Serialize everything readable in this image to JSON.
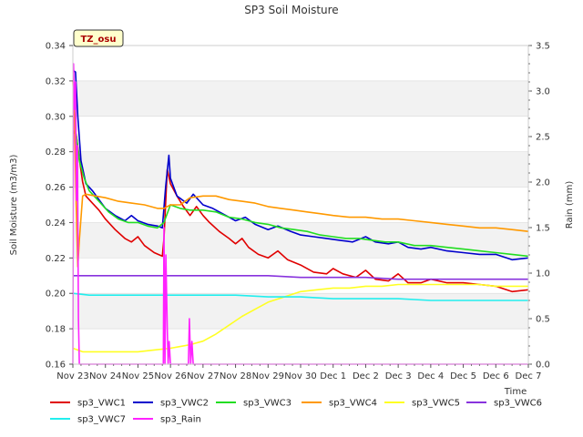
{
  "chart_data": {
    "type": "line",
    "title": "SP3 Soil Moisture",
    "badge": "TZ_osu",
    "xlabel": "Time",
    "ylabel": "Soil Moisture (m3/m3)",
    "y2label": "Rain (mm)",
    "ylim": [
      0.16,
      0.34
    ],
    "y2lim": [
      0.0,
      3.5
    ],
    "xlim": [
      0,
      14
    ],
    "x_ticks": [
      "Nov 23",
      "Nov 24",
      "Nov 25",
      "Nov 26",
      "Nov 27",
      "Nov 28",
      "Nov 29",
      "Nov 30",
      "Dec 1",
      "Dec 2",
      "Dec 3",
      "Dec 4",
      "Dec 5",
      "Dec 6",
      "Dec 7"
    ],
    "y_ticks": [
      "0.16",
      "0.18",
      "0.20",
      "0.22",
      "0.24",
      "0.26",
      "0.28",
      "0.30",
      "0.32",
      "0.34"
    ],
    "y2_ticks": [
      "0.0",
      "0.5",
      "1.0",
      "1.5",
      "2.0",
      "2.5",
      "3.0",
      "3.5"
    ],
    "grid": "horizontal bands",
    "legend_position": "bottom",
    "series": [
      {
        "name": "sp3_VWC1",
        "color": "#e00000",
        "axis": "left",
        "points": [
          [
            0.0,
            0.291
          ],
          [
            0.1,
            0.29
          ],
          [
            0.2,
            0.276
          ],
          [
            0.3,
            0.263
          ],
          [
            0.4,
            0.255
          ],
          [
            0.6,
            0.251
          ],
          [
            0.8,
            0.247
          ],
          [
            1.0,
            0.242
          ],
          [
            1.3,
            0.236
          ],
          [
            1.6,
            0.231
          ],
          [
            1.8,
            0.229
          ],
          [
            2.0,
            0.232
          ],
          [
            2.2,
            0.227
          ],
          [
            2.5,
            0.223
          ],
          [
            2.75,
            0.221
          ],
          [
            2.8,
            0.231
          ],
          [
            2.9,
            0.27
          ],
          [
            3.0,
            0.262
          ],
          [
            3.2,
            0.255
          ],
          [
            3.4,
            0.249
          ],
          [
            3.6,
            0.244
          ],
          [
            3.8,
            0.249
          ],
          [
            4.0,
            0.244
          ],
          [
            4.2,
            0.24
          ],
          [
            4.5,
            0.235
          ],
          [
            4.8,
            0.231
          ],
          [
            5.0,
            0.228
          ],
          [
            5.2,
            0.231
          ],
          [
            5.4,
            0.226
          ],
          [
            5.7,
            0.222
          ],
          [
            6.0,
            0.22
          ],
          [
            6.3,
            0.224
          ],
          [
            6.6,
            0.219
          ],
          [
            7.0,
            0.216
          ],
          [
            7.4,
            0.212
          ],
          [
            7.8,
            0.211
          ],
          [
            8.0,
            0.214
          ],
          [
            8.3,
            0.211
          ],
          [
            8.7,
            0.209
          ],
          [
            9.0,
            0.213
          ],
          [
            9.3,
            0.208
          ],
          [
            9.7,
            0.207
          ],
          [
            10.0,
            0.211
          ],
          [
            10.3,
            0.206
          ],
          [
            10.7,
            0.206
          ],
          [
            11.0,
            0.208
          ],
          [
            11.5,
            0.206
          ],
          [
            12.0,
            0.206
          ],
          [
            12.5,
            0.205
          ],
          [
            13.0,
            0.204
          ],
          [
            13.5,
            0.201
          ],
          [
            14.0,
            0.202
          ]
        ]
      },
      {
        "name": "sp3_VWC2",
        "color": "#0000cc",
        "axis": "left",
        "points": [
          [
            0.0,
            0.326
          ],
          [
            0.08,
            0.325
          ],
          [
            0.15,
            0.3
          ],
          [
            0.25,
            0.275
          ],
          [
            0.4,
            0.262
          ],
          [
            0.6,
            0.258
          ],
          [
            0.8,
            0.253
          ],
          [
            1.0,
            0.248
          ],
          [
            1.3,
            0.244
          ],
          [
            1.6,
            0.241
          ],
          [
            1.8,
            0.244
          ],
          [
            2.0,
            0.241
          ],
          [
            2.3,
            0.239
          ],
          [
            2.6,
            0.238
          ],
          [
            2.75,
            0.237
          ],
          [
            2.85,
            0.26
          ],
          [
            2.95,
            0.278
          ],
          [
            3.0,
            0.265
          ],
          [
            3.2,
            0.255
          ],
          [
            3.5,
            0.251
          ],
          [
            3.7,
            0.256
          ],
          [
            4.0,
            0.25
          ],
          [
            4.3,
            0.248
          ],
          [
            4.6,
            0.245
          ],
          [
            5.0,
            0.241
          ],
          [
            5.3,
            0.243
          ],
          [
            5.6,
            0.239
          ],
          [
            6.0,
            0.236
          ],
          [
            6.3,
            0.238
          ],
          [
            6.7,
            0.235
          ],
          [
            7.0,
            0.233
          ],
          [
            7.4,
            0.232
          ],
          [
            7.8,
            0.231
          ],
          [
            8.2,
            0.23
          ],
          [
            8.6,
            0.229
          ],
          [
            9.0,
            0.232
          ],
          [
            9.3,
            0.229
          ],
          [
            9.7,
            0.228
          ],
          [
            10.0,
            0.229
          ],
          [
            10.3,
            0.226
          ],
          [
            10.7,
            0.225
          ],
          [
            11.0,
            0.226
          ],
          [
            11.5,
            0.224
          ],
          [
            12.0,
            0.223
          ],
          [
            12.5,
            0.222
          ],
          [
            13.0,
            0.222
          ],
          [
            13.5,
            0.219
          ],
          [
            14.0,
            0.22
          ]
        ]
      },
      {
        "name": "sp3_VWC3",
        "color": "#22dd22",
        "axis": "left",
        "points": [
          [
            0.0,
            0.292
          ],
          [
            0.1,
            0.29
          ],
          [
            0.2,
            0.275
          ],
          [
            0.35,
            0.265
          ],
          [
            0.5,
            0.258
          ],
          [
            0.8,
            0.252
          ],
          [
            1.1,
            0.246
          ],
          [
            1.4,
            0.242
          ],
          [
            1.7,
            0.24
          ],
          [
            2.0,
            0.24
          ],
          [
            2.3,
            0.238
          ],
          [
            2.6,
            0.237
          ],
          [
            2.8,
            0.24
          ],
          [
            3.0,
            0.25
          ],
          [
            3.3,
            0.248
          ],
          [
            3.6,
            0.247
          ],
          [
            4.0,
            0.247
          ],
          [
            4.4,
            0.246
          ],
          [
            4.8,
            0.243
          ],
          [
            5.2,
            0.242
          ],
          [
            5.6,
            0.24
          ],
          [
            6.0,
            0.239
          ],
          [
            6.4,
            0.237
          ],
          [
            6.8,
            0.236
          ],
          [
            7.2,
            0.235
          ],
          [
            7.6,
            0.233
          ],
          [
            8.0,
            0.232
          ],
          [
            8.4,
            0.231
          ],
          [
            8.8,
            0.231
          ],
          [
            9.2,
            0.23
          ],
          [
            9.6,
            0.229
          ],
          [
            10.0,
            0.229
          ],
          [
            10.5,
            0.227
          ],
          [
            11.0,
            0.227
          ],
          [
            11.5,
            0.226
          ],
          [
            12.0,
            0.225
          ],
          [
            12.5,
            0.224
          ],
          [
            13.0,
            0.223
          ],
          [
            13.5,
            0.222
          ],
          [
            14.0,
            0.221
          ]
        ]
      },
      {
        "name": "sp3_VWC4",
        "color": "#ff9900",
        "axis": "left",
        "points": [
          [
            0.0,
            0.32
          ],
          [
            0.05,
            0.3
          ],
          [
            0.1,
            0.25
          ],
          [
            0.15,
            0.215
          ],
          [
            0.2,
            0.23
          ],
          [
            0.3,
            0.255
          ],
          [
            0.4,
            0.256
          ],
          [
            0.7,
            0.255
          ],
          [
            1.0,
            0.254
          ],
          [
            1.4,
            0.252
          ],
          [
            1.8,
            0.251
          ],
          [
            2.2,
            0.25
          ],
          [
            2.6,
            0.248
          ],
          [
            2.8,
            0.248
          ],
          [
            3.0,
            0.25
          ],
          [
            3.3,
            0.25
          ],
          [
            3.6,
            0.254
          ],
          [
            4.0,
            0.255
          ],
          [
            4.4,
            0.255
          ],
          [
            4.8,
            0.253
          ],
          [
            5.2,
            0.252
          ],
          [
            5.6,
            0.251
          ],
          [
            6.0,
            0.249
          ],
          [
            6.4,
            0.248
          ],
          [
            6.8,
            0.247
          ],
          [
            7.2,
            0.246
          ],
          [
            7.6,
            0.245
          ],
          [
            8.0,
            0.244
          ],
          [
            8.5,
            0.243
          ],
          [
            9.0,
            0.243
          ],
          [
            9.5,
            0.242
          ],
          [
            10.0,
            0.242
          ],
          [
            10.5,
            0.241
          ],
          [
            11.0,
            0.24
          ],
          [
            11.5,
            0.239
          ],
          [
            12.0,
            0.238
          ],
          [
            12.5,
            0.237
          ],
          [
            13.0,
            0.237
          ],
          [
            13.5,
            0.236
          ],
          [
            14.0,
            0.235
          ]
        ]
      },
      {
        "name": "sp3_VWC5",
        "color": "#ffff22",
        "axis": "left",
        "points": [
          [
            0.0,
            0.169
          ],
          [
            0.3,
            0.167
          ],
          [
            0.6,
            0.167
          ],
          [
            1.0,
            0.167
          ],
          [
            1.5,
            0.167
          ],
          [
            2.0,
            0.167
          ],
          [
            2.5,
            0.168
          ],
          [
            3.0,
            0.169
          ],
          [
            3.3,
            0.17
          ],
          [
            3.6,
            0.171
          ],
          [
            4.0,
            0.173
          ],
          [
            4.4,
            0.177
          ],
          [
            4.8,
            0.182
          ],
          [
            5.2,
            0.187
          ],
          [
            5.6,
            0.191
          ],
          [
            6.0,
            0.195
          ],
          [
            6.5,
            0.198
          ],
          [
            7.0,
            0.201
          ],
          [
            7.5,
            0.202
          ],
          [
            8.0,
            0.203
          ],
          [
            8.5,
            0.203
          ],
          [
            9.0,
            0.204
          ],
          [
            9.5,
            0.204
          ],
          [
            10.0,
            0.205
          ],
          [
            10.5,
            0.205
          ],
          [
            11.0,
            0.205
          ],
          [
            11.5,
            0.205
          ],
          [
            12.0,
            0.205
          ],
          [
            12.5,
            0.205
          ],
          [
            13.0,
            0.204
          ],
          [
            13.5,
            0.204
          ],
          [
            14.0,
            0.204
          ]
        ]
      },
      {
        "name": "sp3_VWC6",
        "color": "#8833dd",
        "axis": "left",
        "points": [
          [
            0.0,
            0.21
          ],
          [
            0.5,
            0.21
          ],
          [
            1.0,
            0.21
          ],
          [
            2.0,
            0.21
          ],
          [
            3.0,
            0.21
          ],
          [
            4.0,
            0.21
          ],
          [
            5.0,
            0.21
          ],
          [
            6.0,
            0.21
          ],
          [
            7.0,
            0.209
          ],
          [
            8.0,
            0.209
          ],
          [
            9.0,
            0.209
          ],
          [
            10.0,
            0.208
          ],
          [
            11.0,
            0.208
          ],
          [
            12.0,
            0.208
          ],
          [
            13.0,
            0.208
          ],
          [
            14.0,
            0.208
          ]
        ]
      },
      {
        "name": "sp3_VWC7",
        "color": "#22eeee",
        "axis": "left",
        "points": [
          [
            0.0,
            0.2
          ],
          [
            0.5,
            0.199
          ],
          [
            1.0,
            0.199
          ],
          [
            2.0,
            0.199
          ],
          [
            3.0,
            0.199
          ],
          [
            4.0,
            0.199
          ],
          [
            5.0,
            0.199
          ],
          [
            6.0,
            0.198
          ],
          [
            7.0,
            0.198
          ],
          [
            8.0,
            0.197
          ],
          [
            9.0,
            0.197
          ],
          [
            10.0,
            0.197
          ],
          [
            11.0,
            0.196
          ],
          [
            12.0,
            0.196
          ],
          [
            13.0,
            0.196
          ],
          [
            14.0,
            0.196
          ]
        ]
      },
      {
        "name": "sp3_Rain",
        "color": "#ff22ff",
        "axis": "right",
        "points": [
          [
            0.0,
            0.0
          ],
          [
            0.02,
            3.3
          ],
          [
            0.05,
            2.8
          ],
          [
            0.08,
            3.1
          ],
          [
            0.11,
            1.8
          ],
          [
            0.14,
            2.4
          ],
          [
            0.17,
            0.5
          ],
          [
            0.2,
            0.0
          ],
          [
            2.5,
            0.0
          ],
          [
            2.78,
            0.0
          ],
          [
            2.8,
            1.5
          ],
          [
            2.83,
            0.0
          ],
          [
            2.86,
            1.2
          ],
          [
            2.9,
            0.4
          ],
          [
            2.93,
            0.0
          ],
          [
            2.96,
            0.25
          ],
          [
            3.0,
            0.0
          ],
          [
            3.55,
            0.0
          ],
          [
            3.58,
            0.5
          ],
          [
            3.62,
            0.0
          ],
          [
            3.66,
            0.25
          ],
          [
            3.7,
            0.0
          ],
          [
            14.0,
            0.0
          ]
        ]
      }
    ]
  }
}
